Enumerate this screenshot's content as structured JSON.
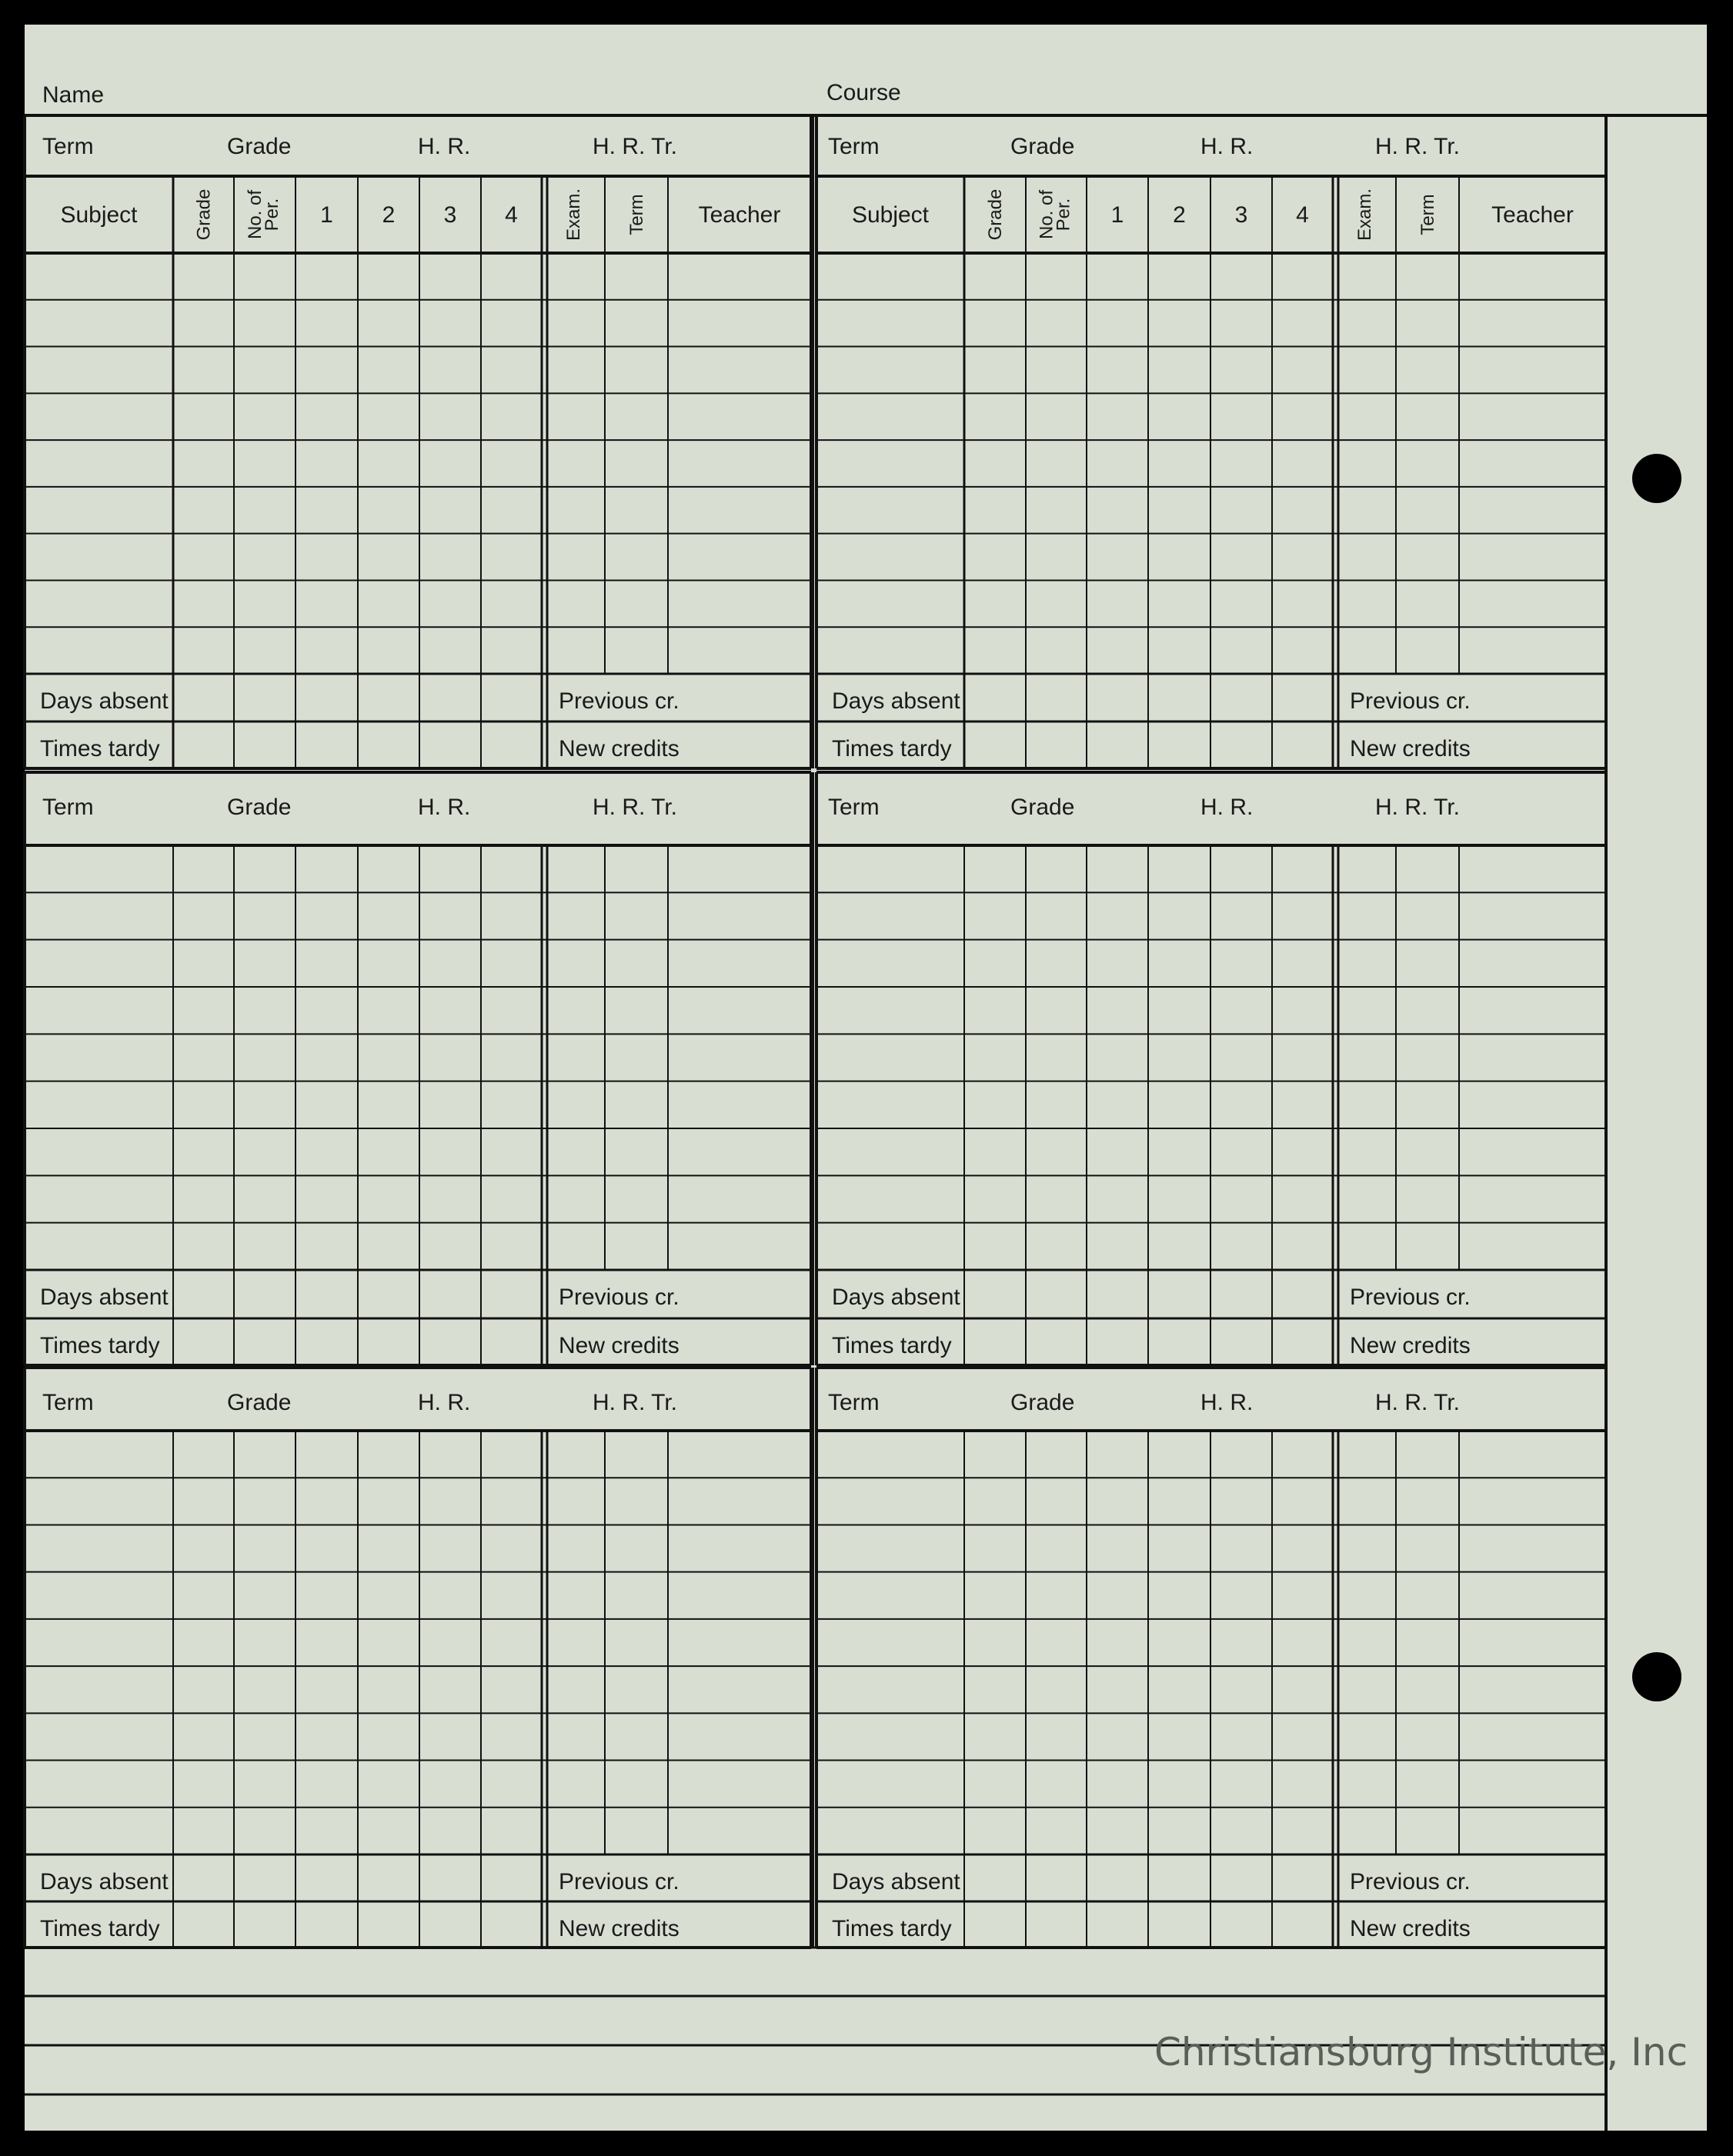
{
  "header": {
    "name_label": "Name",
    "course_label": "Course"
  },
  "column_headers": [
    "Subject",
    "Grade",
    "No. of Per.",
    "1",
    "2",
    "3",
    "4",
    "Exam.",
    "Term",
    "Teacher"
  ],
  "panels": [
    {
      "term": "Term",
      "grade": "Grade",
      "hr": "H. R.",
      "hrtr": "H. R. Tr.",
      "days_absent": "Days absent",
      "times_tardy": "Times tardy",
      "previous_cr": "Previous cr.",
      "new_credits": "New credits"
    },
    {
      "term": "Term",
      "grade": "Grade",
      "hr": "H. R.",
      "hrtr": "H. R. Tr.",
      "days_absent": "Days absent",
      "times_tardy": "Times tardy",
      "previous_cr": "Previous cr.",
      "new_credits": "New credits"
    },
    {
      "term": "Term",
      "grade": "Grade",
      "hr": "H. R.",
      "hrtr": "H. R. Tr.",
      "days_absent": "Days absent",
      "times_tardy": "Times tardy",
      "previous_cr": "Previous cr.",
      "new_credits": "New credits"
    },
    {
      "term": "Term",
      "grade": "Grade",
      "hr": "H. R.",
      "hrtr": "H. R. Tr.",
      "days_absent": "Days absent",
      "times_tardy": "Times tardy",
      "previous_cr": "Previous cr.",
      "new_credits": "New credits"
    },
    {
      "term": "Term",
      "grade": "Grade",
      "hr": "H. R.",
      "hrtr": "H. R. Tr.",
      "days_absent": "Days absent",
      "times_tardy": "Times tardy",
      "previous_cr": "Previous cr.",
      "new_credits": "New credits"
    },
    {
      "term": "Term",
      "grade": "Grade",
      "hr": "H. R.",
      "hrtr": "H. R. Tr.",
      "days_absent": "Days absent",
      "times_tardy": "Times tardy",
      "previous_cr": "Previous cr.",
      "new_credits": "New credits"
    }
  ],
  "watermark": "Christiansburg Institute, Inc",
  "colors": {
    "paper": "#d9ded3",
    "ink": "#111111",
    "background": "#000000"
  }
}
